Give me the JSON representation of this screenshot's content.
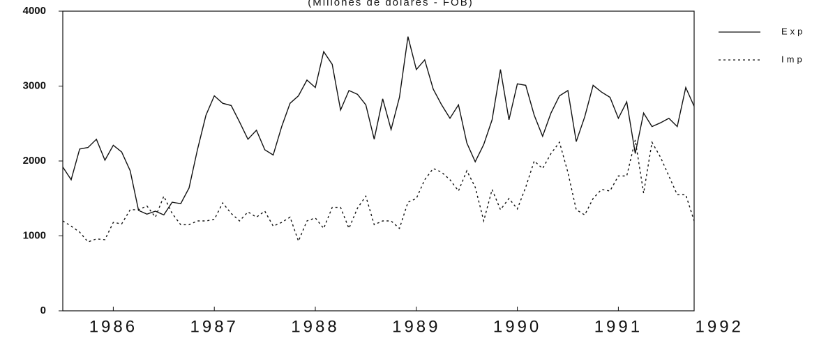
{
  "chart_data": {
    "type": "line",
    "subtitle": "(Millones de dolares - FOB)",
    "x": [
      1986,
      1986.083,
      1986.167,
      1986.25,
      1986.333,
      1986.417,
      1986.5,
      1986.583,
      1986.667,
      1986.75,
      1986.833,
      1986.917,
      1987,
      1987.083,
      1987.167,
      1987.25,
      1987.333,
      1987.417,
      1987.5,
      1987.583,
      1987.667,
      1987.75,
      1987.833,
      1987.917,
      1988,
      1988.083,
      1988.167,
      1988.25,
      1988.333,
      1988.417,
      1988.5,
      1988.583,
      1988.667,
      1988.75,
      1988.833,
      1988.917,
      1989,
      1989.083,
      1989.167,
      1989.25,
      1989.333,
      1989.417,
      1989.5,
      1989.583,
      1989.667,
      1989.75,
      1989.833,
      1989.917,
      1990,
      1990.083,
      1990.167,
      1990.25,
      1990.333,
      1990.417,
      1990.5,
      1990.583,
      1990.667,
      1990.75,
      1990.833,
      1990.917,
      1991,
      1991.083,
      1991.167,
      1991.25,
      1991.333,
      1991.417,
      1991.5,
      1991.583,
      1991.667,
      1991.75,
      1991.833,
      1991.917,
      1992,
      1992.083,
      1992.167,
      1992.25
    ],
    "series": [
      {
        "name": "Exp",
        "color": "#111111",
        "dash": "none",
        "values": [
          1920,
          1750,
          2160,
          2180,
          2290,
          2010,
          2210,
          2120,
          1870,
          1340,
          1290,
          1330,
          1280,
          1450,
          1430,
          1640,
          2150,
          2610,
          2870,
          2770,
          2740,
          2520,
          2290,
          2410,
          2150,
          2080,
          2460,
          2770,
          2870,
          3080,
          2980,
          3460,
          3290,
          2680,
          2940,
          2890,
          2750,
          2290,
          2830,
          2420,
          2850,
          3660,
          3220,
          3350,
          2960,
          2750,
          2570,
          2750,
          2240,
          1990,
          2220,
          2550,
          3220,
          2550,
          3030,
          3010,
          2610,
          2330,
          2640,
          2870,
          2940,
          2260,
          2590,
          3010,
          2920,
          2850,
          2570,
          2790,
          2100,
          2640,
          2460,
          2510,
          2570,
          2460,
          2980,
          2730
        ]
      },
      {
        "name": "Imp",
        "color": "#111111",
        "dash": "3 4",
        "values": [
          1200,
          1130,
          1050,
          920,
          960,
          950,
          1180,
          1160,
          1350,
          1350,
          1400,
          1250,
          1530,
          1300,
          1150,
          1150,
          1200,
          1200,
          1220,
          1440,
          1300,
          1200,
          1320,
          1250,
          1330,
          1130,
          1180,
          1250,
          930,
          1200,
          1240,
          1100,
          1380,
          1380,
          1100,
          1370,
          1530,
          1150,
          1200,
          1200,
          1100,
          1450,
          1500,
          1750,
          1900,
          1850,
          1750,
          1600,
          1870,
          1650,
          1200,
          1620,
          1350,
          1500,
          1360,
          1650,
          2000,
          1900,
          2100,
          2250,
          1850,
          1350,
          1280,
          1500,
          1620,
          1600,
          1800,
          1800,
          2280,
          1570,
          2250,
          2050,
          1800,
          1550,
          1550,
          1200
        ]
      }
    ],
    "xlim": [
      1986,
      1992.25
    ],
    "xticks": [
      {
        "value": 1986.5,
        "label": "1986"
      },
      {
        "value": 1987.5,
        "label": "1987"
      },
      {
        "value": 1988.5,
        "label": "1988"
      },
      {
        "value": 1989.5,
        "label": "1989"
      },
      {
        "value": 1990.5,
        "label": "1990"
      },
      {
        "value": 1991.5,
        "label": "1991"
      },
      {
        "value": 1992.5,
        "label": "1992"
      }
    ],
    "ylim": [
      0,
      4000
    ],
    "yticks": [
      0,
      1000,
      2000,
      3000,
      4000
    ],
    "grid": false,
    "legend": "right"
  }
}
